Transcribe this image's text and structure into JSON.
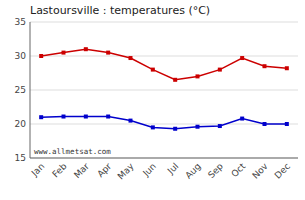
{
  "chart_data": {
    "type": "line",
    "title": "Lastoursville : temperatures (°C)",
    "categories": [
      "Jan",
      "Feb",
      "Mar",
      "Apr",
      "May",
      "Jun",
      "Jul",
      "Aug",
      "Sep",
      "Oct",
      "Nov",
      "Dec"
    ],
    "series": [
      {
        "color": "#cc0000",
        "marker": "square",
        "values": [
          30.0,
          30.5,
          31.0,
          30.5,
          29.7,
          28.0,
          26.5,
          27.0,
          28.0,
          29.7,
          28.5,
          28.2
        ]
      },
      {
        "color": "#0000cc",
        "marker": "square",
        "values": [
          21.0,
          21.1,
          21.1,
          21.1,
          20.5,
          19.5,
          19.3,
          19.6,
          19.7,
          20.8,
          20.0,
          20.0
        ]
      }
    ],
    "ylim": [
      15,
      35
    ],
    "yticks": [
      15,
      20,
      25,
      30,
      35
    ],
    "grid": true,
    "annotations": [
      "www.allmetsat.com"
    ]
  }
}
